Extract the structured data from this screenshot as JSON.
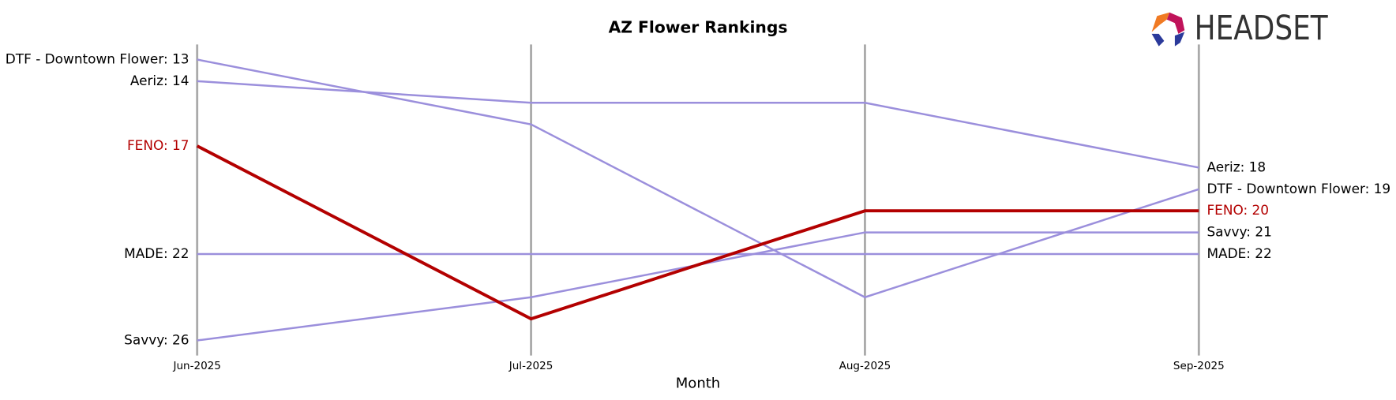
{
  "chart_data": {
    "type": "bump",
    "title": "AZ Flower Rankings",
    "x_label": "Month",
    "logo": "HEADSET",
    "categories": [
      "Jun-2025",
      "Jul-2025",
      "Aug-2025",
      "Sep-2025"
    ],
    "ylim": [
      26.7,
      12.3
    ],
    "highlight": "FENO",
    "series": [
      {
        "name": "DTF - Downtown Flower",
        "color": "#9b8fdc",
        "values": [
          13,
          16,
          24,
          19
        ],
        "value_labels": [
          "DTF - Downtown Flower: 13",
          null,
          null,
          "DTF - Downtown Flower: 19"
        ]
      },
      {
        "name": "Aeriz",
        "color": "#9b8fdc",
        "values": [
          14,
          15,
          15,
          18
        ],
        "value_labels": [
          "Aeriz: 14",
          null,
          null,
          "Aeriz: 18"
        ]
      },
      {
        "name": "FENO",
        "color": "#b30000",
        "values": [
          17,
          25,
          20,
          20
        ],
        "value_labels": [
          "FENO: 17",
          null,
          null,
          "FENO: 20"
        ]
      },
      {
        "name": "MADE",
        "color": "#9b8fdc",
        "values": [
          22,
          22,
          22,
          22
        ],
        "value_labels": [
          "MADE: 22",
          null,
          null,
          "MADE: 22"
        ]
      },
      {
        "name": "Savvy",
        "color": "#9b8fdc",
        "values": [
          26,
          24,
          21,
          21
        ],
        "value_labels": [
          "Savvy: 26",
          null,
          null,
          "Savvy: 21"
        ]
      }
    ]
  }
}
